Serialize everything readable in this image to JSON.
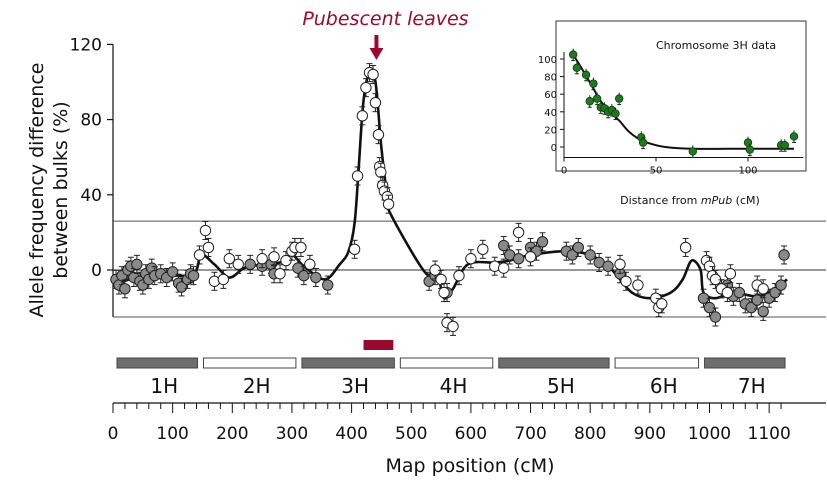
{
  "chart_data": [
    {
      "type": "scatter",
      "title": "",
      "ylabel": [
        "Allele frequency difference",
        "between bulks (%)"
      ],
      "xlabel": "Map position (cM)",
      "ylim": [
        -25,
        125
      ],
      "xlim": [
        0,
        1130
      ],
      "yticks": [
        0,
        40,
        80,
        120
      ],
      "xticks": [
        0,
        100,
        200,
        300,
        400,
        500,
        600,
        700,
        800,
        900,
        1000,
        1100
      ],
      "threshold_lines": [
        26,
        -25
      ],
      "annotation": {
        "text": "Pubescent leaves",
        "x": 440,
        "color": "#9b0a2d"
      },
      "qtl_bar": {
        "x_start": 420,
        "x_end": 470,
        "color": "#9b0a2d"
      },
      "chromosomes": [
        {
          "name": "1H",
          "start": 0,
          "end": 145,
          "fill": "#6e6e6e"
        },
        {
          "name": "2H",
          "start": 145,
          "end": 310,
          "fill": "#ffffff"
        },
        {
          "name": "3H",
          "start": 310,
          "end": 475,
          "fill": "#6e6e6e"
        },
        {
          "name": "4H",
          "start": 475,
          "end": 640,
          "fill": "#ffffff"
        },
        {
          "name": "5H",
          "start": 640,
          "end": 835,
          "fill": "#6e6e6e"
        },
        {
          "name": "6H",
          "start": 835,
          "end": 985,
          "fill": "#ffffff"
        },
        {
          "name": "7H",
          "start": 985,
          "end": 1130,
          "fill": "#6e6e6e"
        }
      ],
      "series": [
        {
          "marker": "grey",
          "points": [
            [
              5,
              -5
            ],
            [
              10,
              -8
            ],
            [
              15,
              -3
            ],
            [
              20,
              -10
            ],
            [
              25,
              0
            ],
            [
              30,
              2
            ],
            [
              35,
              -4
            ],
            [
              40,
              3
            ],
            [
              45,
              -6
            ],
            [
              50,
              -8
            ],
            [
              55,
              -2
            ],
            [
              60,
              -5
            ],
            [
              65,
              1
            ],
            [
              70,
              -3
            ],
            [
              80,
              -2
            ],
            [
              90,
              -4
            ],
            [
              100,
              -1
            ],
            [
              110,
              -7
            ],
            [
              115,
              -9
            ],
            [
              125,
              -5
            ],
            [
              130,
              -2
            ],
            [
              135,
              -3
            ],
            [
              230,
              3
            ],
            [
              250,
              2
            ],
            [
              265,
              3
            ],
            [
              270,
              -2
            ],
            [
              310,
              1
            ],
            [
              320,
              -3
            ],
            [
              340,
              -4
            ],
            [
              360,
              -8
            ],
            [
              530,
              -6
            ],
            [
              540,
              -3
            ],
            [
              560,
              -12
            ],
            [
              655,
              13
            ],
            [
              665,
              8
            ],
            [
              680,
              6
            ],
            [
              700,
              12
            ],
            [
              710,
              10
            ],
            [
              720,
              15
            ],
            [
              760,
              10
            ],
            [
              770,
              8
            ],
            [
              780,
              12
            ],
            [
              800,
              8
            ],
            [
              815,
              4
            ],
            [
              830,
              2
            ],
            [
              850,
              -2
            ],
            [
              990,
              -15
            ],
            [
              1000,
              -20
            ],
            [
              1010,
              -25
            ],
            [
              1020,
              -10
            ],
            [
              1030,
              -8
            ],
            [
              1040,
              -14
            ],
            [
              1050,
              -12
            ],
            [
              1060,
              -18
            ],
            [
              1070,
              -20
            ],
            [
              1080,
              -16
            ],
            [
              1090,
              -22
            ],
            [
              1100,
              -15
            ],
            [
              1110,
              -12
            ],
            [
              1120,
              -8
            ],
            [
              1125,
              8
            ]
          ]
        },
        {
          "marker": "white",
          "points": [
            [
              145,
              8
            ],
            [
              155,
              21
            ],
            [
              160,
              12
            ],
            [
              170,
              -6
            ],
            [
              185,
              -5
            ],
            [
              195,
              6
            ],
            [
              210,
              3
            ],
            [
              250,
              6
            ],
            [
              270,
              7
            ],
            [
              280,
              -2
            ],
            [
              290,
              5
            ],
            [
              300,
              10
            ],
            [
              305,
              12
            ],
            [
              315,
              12
            ],
            [
              330,
              3
            ],
            [
              540,
              0
            ],
            [
              550,
              -5
            ],
            [
              555,
              -12
            ],
            [
              560,
              -28
            ],
            [
              570,
              -30
            ],
            [
              580,
              -3
            ],
            [
              600,
              6
            ],
            [
              620,
              11
            ],
            [
              640,
              2
            ],
            [
              655,
              1
            ],
            [
              680,
              20
            ],
            [
              700,
              7
            ],
            [
              850,
              3
            ],
            [
              860,
              -6
            ],
            [
              880,
              -8
            ],
            [
              910,
              -15
            ],
            [
              915,
              -20
            ],
            [
              920,
              -18
            ],
            [
              960,
              12
            ],
            [
              995,
              5
            ],
            [
              1000,
              2
            ],
            [
              1005,
              -3
            ],
            [
              1010,
              -5
            ],
            [
              1020,
              -10
            ],
            [
              1030,
              -12
            ],
            [
              1035,
              -2
            ],
            [
              1080,
              -8
            ],
            [
              1090,
              -10
            ]
          ]
        },
        {
          "marker": "white_peak",
          "points": [
            [
              405,
              11
            ],
            [
              410,
              50
            ],
            [
              418,
              82
            ],
            [
              424,
              97
            ],
            [
              430,
              105
            ],
            [
              436,
              104
            ],
            [
              440,
              89
            ],
            [
              445,
              72
            ],
            [
              447,
              55
            ],
            [
              449,
              52
            ],
            [
              452,
              45
            ],
            [
              455,
              42
            ],
            [
              460,
              39
            ],
            [
              462,
              35
            ]
          ]
        }
      ],
      "curve": [
        [
          0,
          -8
        ],
        [
          40,
          -4
        ],
        [
          90,
          -3
        ],
        [
          135,
          -2
        ],
        [
          148,
          8
        ],
        [
          170,
          3
        ],
        [
          195,
          -4
        ],
        [
          220,
          1
        ],
        [
          250,
          3
        ],
        [
          280,
          4
        ],
        [
          300,
          8
        ],
        [
          320,
          2
        ],
        [
          355,
          -5
        ],
        [
          380,
          3
        ],
        [
          395,
          10
        ],
        [
          405,
          25
        ],
        [
          412,
          55
        ],
        [
          420,
          90
        ],
        [
          430,
          105
        ],
        [
          440,
          100
        ],
        [
          450,
          65
        ],
        [
          460,
          38
        ],
        [
          465,
          30
        ],
        [
          520,
          0
        ],
        [
          545,
          -5
        ],
        [
          555,
          -15
        ],
        [
          570,
          -10
        ],
        [
          595,
          3
        ],
        [
          640,
          4
        ],
        [
          665,
          5
        ],
        [
          700,
          8
        ],
        [
          760,
          10
        ],
        [
          800,
          8
        ],
        [
          830,
          2
        ],
        [
          845,
          -3
        ],
        [
          870,
          -12
        ],
        [
          900,
          -15
        ],
        [
          935,
          -12
        ],
        [
          955,
          -5
        ],
        [
          970,
          5
        ],
        [
          985,
          0
        ],
        [
          990,
          -12
        ],
        [
          1010,
          -15
        ],
        [
          1040,
          -12
        ],
        [
          1080,
          -14
        ],
        [
          1110,
          -10
        ],
        [
          1130,
          -5
        ]
      ]
    },
    {
      "type": "scatter",
      "title": "Chromosome 3H data",
      "xlabel_parts": [
        "Distance from ",
        "mPub",
        " (cM)"
      ],
      "ylabel": "",
      "xlim": [
        0,
        130
      ],
      "ylim": [
        -10,
        110
      ],
      "xticks": [
        0,
        50,
        100
      ],
      "yticks": [
        0,
        20,
        40,
        60,
        80,
        100
      ],
      "marker_color": "#1f7a1f",
      "points": [
        [
          5,
          105
        ],
        [
          7,
          90
        ],
        [
          12,
          82
        ],
        [
          14,
          52
        ],
        [
          16,
          72
        ],
        [
          18,
          55
        ],
        [
          20,
          45
        ],
        [
          22,
          44
        ],
        [
          24,
          40
        ],
        [
          26,
          42
        ],
        [
          28,
          38
        ],
        [
          30,
          55
        ],
        [
          42,
          11
        ],
        [
          43,
          5
        ],
        [
          70,
          -5
        ],
        [
          100,
          5
        ],
        [
          101,
          -3
        ],
        [
          118,
          2
        ],
        [
          120,
          2
        ],
        [
          125,
          12
        ]
      ],
      "curve": [
        [
          5,
          105
        ],
        [
          10,
          88
        ],
        [
          15,
          70
        ],
        [
          20,
          52
        ],
        [
          25,
          40
        ],
        [
          30,
          30
        ],
        [
          35,
          18
        ],
        [
          40,
          10
        ],
        [
          45,
          5
        ],
        [
          55,
          0
        ],
        [
          70,
          -2
        ],
        [
          90,
          -2
        ],
        [
          110,
          -2
        ],
        [
          125,
          -2
        ]
      ]
    }
  ]
}
